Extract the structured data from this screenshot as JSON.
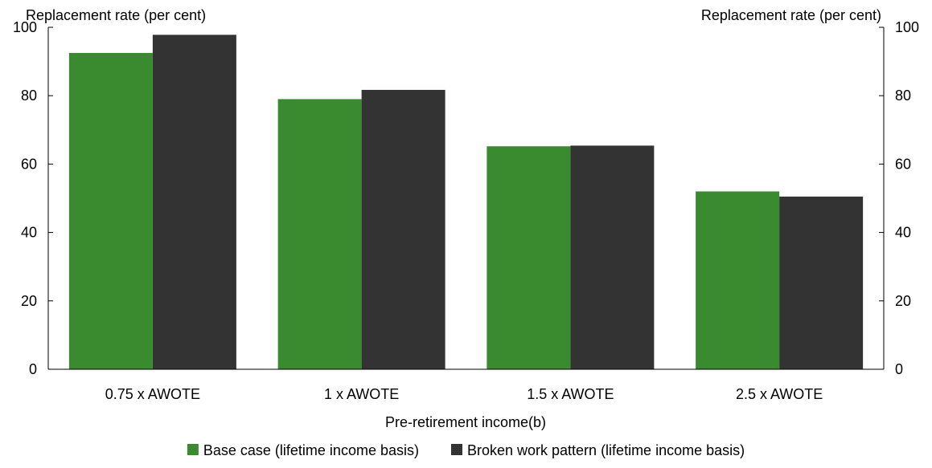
{
  "chart_data": {
    "type": "bar",
    "categories": [
      "0.75 x AWOTE",
      "1 x AWOTE",
      "1.5 x AWOTE",
      "2.5 x AWOTE"
    ],
    "series": [
      {
        "name": "Base case (lifetime income basis)",
        "values": [
          92.5,
          79,
          65.2,
          52
        ],
        "color": "#3a8a2f"
      },
      {
        "name": "Broken work pattern (lifetime income basis)",
        "values": [
          97.8,
          81.7,
          65.4,
          50.5
        ],
        "color": "#333333"
      }
    ],
    "xlabel": "Pre-retirement income(b)",
    "ylabel_left": "Replacement rate (per cent)",
    "ylabel_right": "Replacement rate (per cent)",
    "ylim": [
      0,
      100
    ],
    "yticks": [
      0,
      20,
      40,
      60,
      80,
      100
    ],
    "grid": false,
    "legend_position": "bottom-center"
  }
}
